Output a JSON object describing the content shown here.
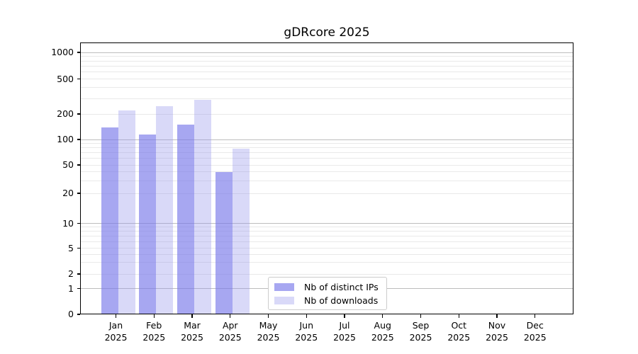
{
  "chart_data": {
    "type": "bar",
    "title": "gDRcore 2025",
    "categories": [
      "Jan 2025",
      "Feb 2025",
      "Mar 2025",
      "Apr 2025",
      "May 2025",
      "Jun 2025",
      "Jul 2025",
      "Aug 2025",
      "Sep 2025",
      "Oct 2025",
      "Nov 2025",
      "Dec 2025"
    ],
    "series": [
      {
        "name": "Nb of distinct IPs",
        "color": "#a7a7f1",
        "values": [
          140,
          114,
          150,
          40,
          null,
          null,
          null,
          null,
          null,
          null,
          null,
          null
        ]
      },
      {
        "name": "Nb of downloads",
        "color": "#d9d9f8",
        "values": [
          220,
          245,
          290,
          78,
          null,
          null,
          null,
          null,
          null,
          null,
          null,
          null
        ]
      }
    ],
    "yscale": "symlog",
    "yticks": [
      0,
      1,
      2,
      5,
      10,
      20,
      50,
      100,
      200,
      500,
      1000
    ],
    "ylim": [
      0,
      1000
    ],
    "xlabel": "",
    "ylabel": "",
    "grid": true,
    "legend_position": "lower-center"
  },
  "colors": {
    "major_grid": "#bdbdbd",
    "minor_grid": "#e9e9e9",
    "axis": "#000000",
    "legend_border": "#cccccc"
  }
}
